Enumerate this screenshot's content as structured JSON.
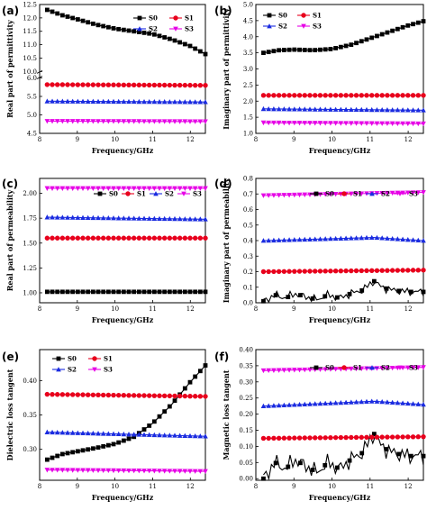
{
  "chart_data": [
    {
      "panel_label": "(a)",
      "type": "line",
      "xlabel": "Frequency/GHz",
      "ylabel": "Real part of permittivity",
      "xlim": [
        8,
        12.4
      ],
      "x_ticks": [
        "8",
        "9",
        "10",
        "11",
        "12"
      ],
      "broken_y_axis": true,
      "y_upper_range": [
        10.0,
        12.5
      ],
      "y_upper_ticks": [
        "10.0",
        "10.5",
        "11.0",
        "11.5",
        "12.0",
        "12.5"
      ],
      "y_lower_range": [
        4.5,
        6.0
      ],
      "y_lower_ticks": [
        "4.5",
        "5.0",
        "5.5",
        "6.0"
      ],
      "legend": [
        "S0",
        "S1",
        "S2",
        "S3"
      ],
      "legend_placement": "top-right",
      "series": [
        {
          "name": "S0",
          "x": [
            8.2,
            8.6,
            9.0,
            9.5,
            10.0,
            10.5,
            11.0,
            11.5,
            12.0,
            12.4
          ],
          "values": [
            12.3,
            12.1,
            11.95,
            11.75,
            11.6,
            11.5,
            11.4,
            11.2,
            10.95,
            10.65
          ]
        },
        {
          "name": "S1",
          "x": [
            8.2,
            12.4
          ],
          "values": [
            5.82,
            5.8
          ]
        },
        {
          "name": "S2",
          "x": [
            8.2,
            12.4
          ],
          "values": [
            5.37,
            5.35
          ]
        },
        {
          "name": "S3",
          "x": [
            8.2,
            12.4
          ],
          "values": [
            4.83,
            4.82
          ]
        }
      ]
    },
    {
      "panel_label": "(b)",
      "type": "line",
      "xlabel": "Frequency/GHz",
      "ylabel": "Imaginary part of permittivity",
      "xlim": [
        8,
        12.4
      ],
      "ylim": [
        1.0,
        5.0
      ],
      "x_ticks": [
        "8",
        "9",
        "10",
        "11",
        "12"
      ],
      "y_ticks": [
        "1.0",
        "1.5",
        "2.0",
        "2.5",
        "3.0",
        "3.5",
        "4.0",
        "4.5",
        "5.0"
      ],
      "legend": [
        "S0",
        "S1",
        "S2",
        "S3"
      ],
      "legend_placement": "top-left",
      "series": [
        {
          "name": "S0",
          "x": [
            8.2,
            8.6,
            9.0,
            9.5,
            10.0,
            10.5,
            11.0,
            11.5,
            12.0,
            12.4
          ],
          "values": [
            3.5,
            3.58,
            3.6,
            3.58,
            3.62,
            3.75,
            3.95,
            4.15,
            4.35,
            4.48
          ]
        },
        {
          "name": "S1",
          "x": [
            8.2,
            12.4
          ],
          "values": [
            2.18,
            2.18
          ]
        },
        {
          "name": "S2",
          "x": [
            8.2,
            12.4
          ],
          "values": [
            1.76,
            1.72
          ]
        },
        {
          "name": "S3",
          "x": [
            8.2,
            12.4
          ],
          "values": [
            1.33,
            1.3
          ]
        }
      ]
    },
    {
      "panel_label": "(c)",
      "type": "line",
      "xlabel": "Frequency/GHz",
      "ylabel": "Real part of permeability",
      "xlim": [
        8,
        12.4
      ],
      "ylim": [
        0.9,
        2.15
      ],
      "x_ticks": [
        "8",
        "9",
        "10",
        "11",
        "12"
      ],
      "y_ticks": [
        "1.00",
        "1.25",
        "1.50",
        "1.75",
        "2.00"
      ],
      "y_ticks_extended": [
        "1.00",
        "1.25",
        "1.50",
        "1.75",
        "2.00",
        "2.05",
        "2.10"
      ],
      "legend": [
        "S0",
        "S1",
        "S2",
        "S3"
      ],
      "legend_placement": "top",
      "series": [
        {
          "name": "S0",
          "x": [
            8.2,
            12.4
          ],
          "values": [
            1.01,
            1.01
          ]
        },
        {
          "name": "S1",
          "x": [
            8.2,
            12.4
          ],
          "values": [
            1.55,
            1.55
          ]
        },
        {
          "name": "S2",
          "x": [
            8.2,
            12.4
          ],
          "values": [
            1.76,
            1.74
          ]
        },
        {
          "name": "S3",
          "x": [
            8.2,
            12.4
          ],
          "values": [
            2.05,
            2.05
          ]
        }
      ]
    },
    {
      "panel_label": "(d)",
      "type": "line",
      "xlabel": "Frequency/GHz",
      "ylabel": "Imaginary part of permeability",
      "xlim": [
        8,
        12.4
      ],
      "ylim": [
        0.0,
        0.8
      ],
      "x_ticks": [
        "8",
        "9",
        "10",
        "11",
        "12"
      ],
      "y_ticks": [
        "0.0",
        "0.1",
        "0.2",
        "0.3",
        "0.4",
        "0.5",
        "0.6",
        "0.7",
        "0.8"
      ],
      "legend": [
        "S0",
        "S1",
        "S2",
        "S3"
      ],
      "legend_placement": "top",
      "series": [
        {
          "name": "S0",
          "x": [
            8.2,
            8.5,
            8.8,
            9.0,
            9.3,
            9.6,
            9.9,
            10.2,
            10.5,
            10.8,
            11.0,
            11.1,
            11.3,
            11.6,
            12.0,
            12.4
          ],
          "values": [
            0.01,
            0.05,
            0.03,
            0.06,
            0.04,
            0.02,
            0.05,
            0.03,
            0.06,
            0.08,
            0.12,
            0.14,
            0.1,
            0.08,
            0.07,
            0.07
          ]
        },
        {
          "name": "S1",
          "x": [
            8.2,
            12.4
          ],
          "values": [
            0.2,
            0.21
          ]
        },
        {
          "name": "S2",
          "x": [
            8.2,
            11.1,
            12.4
          ],
          "values": [
            0.4,
            0.42,
            0.4
          ]
        },
        {
          "name": "S3",
          "x": [
            8.2,
            12.4
          ],
          "values": [
            0.69,
            0.71
          ]
        }
      ]
    },
    {
      "panel_label": "(e)",
      "type": "line",
      "xlabel": "Frequency/GHz",
      "ylabel": "Dielectric loss tangent",
      "xlim": [
        8,
        12.4
      ],
      "ylim": [
        0.255,
        0.445
      ],
      "x_ticks": [
        "8",
        "9",
        "10",
        "11",
        "12"
      ],
      "y_ticks": [
        "0.30",
        "0.35",
        "0.40"
      ],
      "legend": [
        "S0",
        "S1",
        "S2",
        "S3"
      ],
      "legend_placement": "top-left",
      "series": [
        {
          "name": "S0",
          "x": [
            8.2,
            8.6,
            9.0,
            9.5,
            10.0,
            10.5,
            11.0,
            11.5,
            12.0,
            12.4
          ],
          "values": [
            0.285,
            0.293,
            0.297,
            0.302,
            0.308,
            0.318,
            0.338,
            0.365,
            0.398,
            0.422
          ]
        },
        {
          "name": "S1",
          "x": [
            8.2,
            12.4
          ],
          "values": [
            0.38,
            0.377
          ]
        },
        {
          "name": "S2",
          "x": [
            8.2,
            12.4
          ],
          "values": [
            0.325,
            0.319
          ]
        },
        {
          "name": "S3",
          "x": [
            8.2,
            12.4
          ],
          "values": [
            0.27,
            0.268
          ]
        }
      ]
    },
    {
      "panel_label": "(f)",
      "type": "line",
      "xlabel": "Frequency/GHz",
      "ylabel": "Magnetic loss tangent",
      "xlim": [
        8,
        12.4
      ],
      "ylim": [
        -0.005,
        0.4
      ],
      "x_ticks": [
        "8",
        "9",
        "10",
        "11",
        "12"
      ],
      "y_ticks": [
        "0.00",
        "0.05",
        "0.10",
        "0.15",
        "0.20",
        "0.25",
        "0.30",
        "0.35",
        "0.40"
      ],
      "legend": [
        "S0",
        "S1",
        "S2",
        "S3"
      ],
      "legend_placement": "top",
      "series": [
        {
          "name": "S0",
          "x": [
            8.2,
            8.5,
            8.8,
            9.0,
            9.3,
            9.6,
            9.9,
            10.2,
            10.5,
            10.8,
            11.0,
            11.1,
            11.3,
            11.6,
            12.0,
            12.4
          ],
          "values": [
            0.0,
            0.05,
            0.03,
            0.06,
            0.04,
            0.02,
            0.05,
            0.03,
            0.06,
            0.08,
            0.12,
            0.14,
            0.1,
            0.08,
            0.07,
            0.07
          ]
        },
        {
          "name": "S1",
          "x": [
            8.2,
            12.4
          ],
          "values": [
            0.125,
            0.13
          ]
        },
        {
          "name": "S2",
          "x": [
            8.2,
            11.1,
            12.4
          ],
          "values": [
            0.225,
            0.24,
            0.23
          ]
        },
        {
          "name": "S3",
          "x": [
            8.2,
            12.4
          ],
          "values": [
            0.335,
            0.345
          ]
        }
      ]
    }
  ],
  "series_colors": {
    "S0": "#000000",
    "S1": "#e8001c",
    "S2": "#1a2be0",
    "S3": "#e600e6"
  },
  "series_markers": {
    "S0": "square",
    "S1": "circle",
    "S2": "triangle-up",
    "S3": "triangle-down"
  }
}
